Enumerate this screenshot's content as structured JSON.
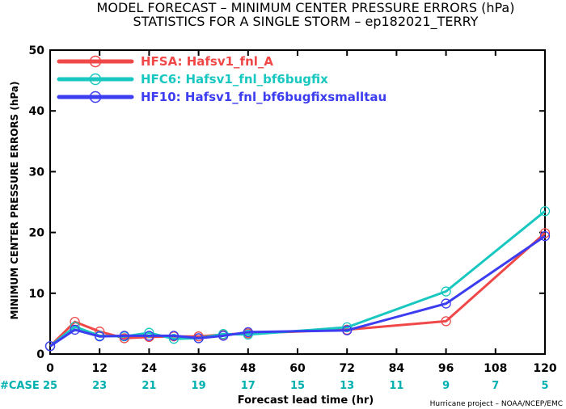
{
  "chart_data": {
    "type": "line",
    "title": "MODEL FORECAST – MINIMUM CENTER PRESSURE ERRORS (hPa)",
    "subtitle": "STATISTICS FOR A SINGLE STORM – ep182021_TERRY",
    "xlabel": "Forecast lead time (hr)",
    "ylabel": "MINIMUM CENTER PRESSURE ERRORS (hPa)",
    "credit": "Hurricane project – NOAA/NCEP/EMC",
    "xlim": [
      0,
      120
    ],
    "ylim": [
      0,
      50
    ],
    "x_ticks": [
      0,
      12,
      24,
      36,
      48,
      60,
      72,
      84,
      96,
      108,
      120
    ],
    "y_ticks": [
      0,
      10,
      20,
      30,
      40,
      50
    ],
    "grid": false,
    "legend_placement": "top-left",
    "case_label": "#CASE",
    "cases": [
      {
        "x": 0,
        "n": "25"
      },
      {
        "x": 12,
        "n": "23"
      },
      {
        "x": 24,
        "n": "21"
      },
      {
        "x": 36,
        "n": "19"
      },
      {
        "x": 48,
        "n": "17"
      },
      {
        "x": 60,
        "n": "15"
      },
      {
        "x": 72,
        "n": "13"
      },
      {
        "x": 84,
        "n": "11"
      },
      {
        "x": 96,
        "n": "9"
      },
      {
        "x": 108,
        "n": "7"
      },
      {
        "x": 120,
        "n": "5"
      }
    ],
    "case_colors": {
      "label": "#00b0b0",
      "numbers": "#00b0b0"
    },
    "series": [
      {
        "name": "HFSA: Hafsv1_fnl_A",
        "color": "#f04848",
        "points": [
          {
            "x": 0,
            "y": 1.3
          },
          {
            "x": 6,
            "y": 5.3
          },
          {
            "x": 12,
            "y": 3.7
          },
          {
            "x": 18,
            "y": 2.6
          },
          {
            "x": 24,
            "y": 2.8
          },
          {
            "x": 30,
            "y": 2.9
          },
          {
            "x": 36,
            "y": 2.9
          },
          {
            "x": 42,
            "y": 3.2
          },
          {
            "x": 48,
            "y": 3.4
          },
          {
            "x": 72,
            "y": 4.0
          },
          {
            "x": 96,
            "y": 5.4
          },
          {
            "x": 120,
            "y": 19.9
          }
        ]
      },
      {
        "name": "HFC6: Hafsv1_fnl_bf6bugfix",
        "color": "#18c8c0",
        "points": [
          {
            "x": 0,
            "y": 1.3
          },
          {
            "x": 6,
            "y": 4.5
          },
          {
            "x": 12,
            "y": 3.0
          },
          {
            "x": 18,
            "y": 2.9
          },
          {
            "x": 24,
            "y": 3.5
          },
          {
            "x": 30,
            "y": 2.5
          },
          {
            "x": 36,
            "y": 2.6
          },
          {
            "x": 42,
            "y": 3.3
          },
          {
            "x": 48,
            "y": 3.2
          },
          {
            "x": 72,
            "y": 4.4
          },
          {
            "x": 96,
            "y": 10.3
          },
          {
            "x": 120,
            "y": 23.5
          }
        ]
      },
      {
        "name": "HF10: Hafsv1_fnl_bf6bugfixsmalltau",
        "color": "#3c3cf0",
        "points": [
          {
            "x": 0,
            "y": 1.3
          },
          {
            "x": 6,
            "y": 4.0
          },
          {
            "x": 12,
            "y": 2.9
          },
          {
            "x": 18,
            "y": 3.0
          },
          {
            "x": 24,
            "y": 3.0
          },
          {
            "x": 30,
            "y": 3.0
          },
          {
            "x": 36,
            "y": 2.6
          },
          {
            "x": 42,
            "y": 3.0
          },
          {
            "x": 48,
            "y": 3.6
          },
          {
            "x": 72,
            "y": 3.9
          },
          {
            "x": 96,
            "y": 8.3
          },
          {
            "x": 120,
            "y": 19.4
          }
        ]
      }
    ]
  }
}
